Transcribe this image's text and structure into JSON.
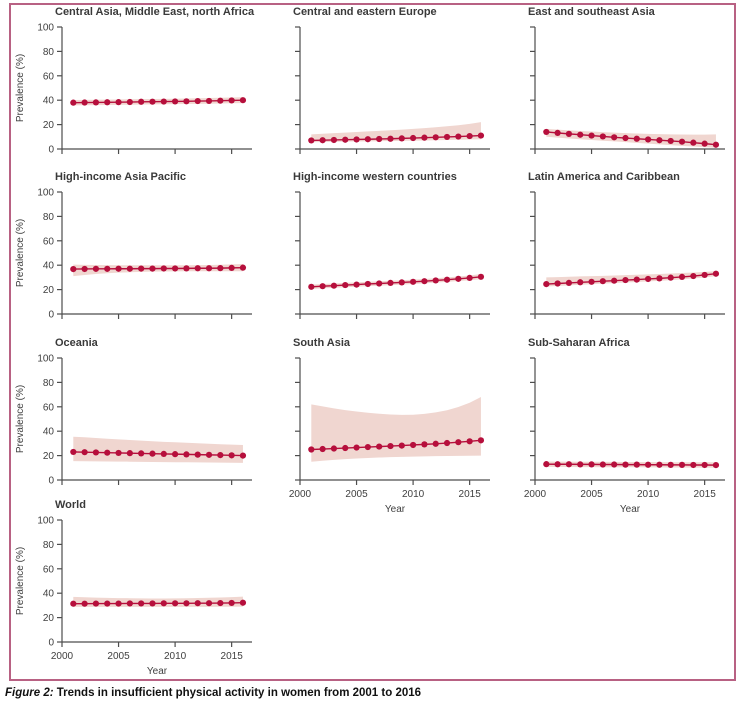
{
  "figure": {
    "caption_label": "Figure 2:",
    "caption_text": " Trends in insufficient physical activity in women from 2001 to 2016"
  },
  "colors": {
    "line": "#b60f3c",
    "band": "#f0d6d0",
    "axis": "#4d4d4d",
    "frame": "#b86183"
  },
  "chart_data": {
    "type": "line",
    "x_label": "Year",
    "y_label": "Prevalence (%)",
    "x": [
      2001,
      2002,
      2003,
      2004,
      2005,
      2006,
      2007,
      2008,
      2009,
      2010,
      2011,
      2012,
      2013,
      2014,
      2015,
      2016
    ],
    "y_ticks": [
      0,
      20,
      40,
      60,
      80,
      100
    ],
    "x_ticks": [
      2000,
      2005,
      2010,
      2015
    ],
    "y_range": [
      0,
      100
    ],
    "x_axis_range": [
      2000,
      2016.8
    ],
    "band_meaning": "uncertainty interval",
    "panels": [
      {
        "title": "Central Asia, Middle East, north Africa",
        "y_labels_visible": true,
        "x_labels_visible": false,
        "values": [
          38,
          38.1,
          38.2,
          38.3,
          38.4,
          38.5,
          38.7,
          38.8,
          38.9,
          39,
          39.1,
          39.3,
          39.4,
          39.6,
          39.8,
          40
        ],
        "lower": [
          35.8,
          35.9,
          36,
          36.1,
          36.2,
          36.3,
          36.5,
          36.6,
          36.7,
          36.8,
          36.9,
          37,
          37.1,
          37.3,
          37.5,
          37.6
        ],
        "upper": [
          40.2,
          40.3,
          40.4,
          40.5,
          40.6,
          40.8,
          40.9,
          41,
          41.1,
          41.2,
          41.4,
          41.6,
          41.8,
          42,
          42.2,
          42.5
        ]
      },
      {
        "title": "Central and eastern Europe",
        "y_labels_visible": false,
        "x_labels_visible": false,
        "values": [
          7,
          7.2,
          7.4,
          7.6,
          7.8,
          8,
          8.2,
          8.4,
          8.7,
          9,
          9.3,
          9.6,
          9.9,
          10.2,
          10.6,
          11
        ],
        "lower": [
          5.5,
          5.6,
          5.8,
          6,
          6.1,
          6.3,
          6.4,
          6.6,
          6.7,
          6.9,
          7,
          7.2,
          7.4,
          7.6,
          7.8,
          8
        ],
        "upper": [
          12,
          12.5,
          13,
          13.4,
          13.9,
          14.4,
          14.9,
          15.4,
          15.9,
          16.5,
          17.1,
          17.8,
          18.6,
          19.5,
          20.6,
          22
        ]
      },
      {
        "title": "East and southeast Asia",
        "y_labels_visible": false,
        "x_labels_visible": false,
        "values": [
          14,
          13.2,
          12.4,
          11.7,
          11,
          10.3,
          9.6,
          9,
          8.4,
          7.8,
          7.2,
          6.6,
          6,
          5.2,
          4.4,
          3.5
        ],
        "lower": [
          10,
          9.3,
          8.6,
          8,
          7.4,
          6.8,
          6.2,
          5.6,
          5,
          4.4,
          3.8,
          3.2,
          2.6,
          2,
          1.5,
          1
        ],
        "upper": [
          16.5,
          15.9,
          15.3,
          14.8,
          14.3,
          13.8,
          13.4,
          13,
          12.7,
          12.4,
          12.2,
          12,
          11.9,
          11.8,
          11.8,
          12
        ]
      },
      {
        "title": "High-income Asia Pacific",
        "y_labels_visible": true,
        "x_labels_visible": false,
        "values": [
          36.8,
          36.9,
          37,
          37,
          37.1,
          37.1,
          37.2,
          37.2,
          37.3,
          37.3,
          37.4,
          37.5,
          37.5,
          37.6,
          37.8,
          38
        ],
        "lower": [
          31,
          32,
          32.8,
          33.4,
          33.9,
          34.2,
          34.5,
          34.7,
          34.8,
          34.9,
          35,
          35,
          35,
          35,
          35,
          35
        ],
        "upper": [
          40.5,
          40.3,
          40.2,
          40.1,
          40,
          40,
          40,
          40,
          40,
          40,
          40,
          40.1,
          40.2,
          40.4,
          40.7,
          41
        ]
      },
      {
        "title": "High-income western countries",
        "y_labels_visible": false,
        "x_labels_visible": false,
        "values": [
          22.3,
          22.8,
          23.2,
          23.7,
          24.1,
          24.6,
          25,
          25.5,
          25.9,
          26.4,
          26.9,
          27.5,
          28.1,
          28.8,
          29.6,
          30.5
        ],
        "lower": [
          20.5,
          21,
          21.4,
          21.9,
          22.3,
          22.8,
          23.2,
          23.7,
          24.1,
          24.6,
          25.1,
          25.7,
          26.3,
          27,
          27.7,
          28.5
        ],
        "upper": [
          24.1,
          24.6,
          25,
          25.5,
          25.9,
          26.4,
          26.8,
          27.3,
          27.7,
          28.2,
          28.7,
          29.3,
          30,
          30.7,
          31.6,
          32.8
        ]
      },
      {
        "title": "Latin America and Caribbean",
        "y_labels_visible": false,
        "x_labels_visible": false,
        "values": [
          24.5,
          25,
          25.5,
          26,
          26.4,
          26.9,
          27.3,
          27.8,
          28.2,
          28.7,
          29.2,
          29.8,
          30.4,
          31.1,
          32,
          33
        ],
        "lower": [
          22.5,
          23,
          23.5,
          24,
          24.4,
          24.9,
          25.3,
          25.8,
          26.2,
          26.7,
          27.2,
          27.8,
          28.4,
          29.1,
          30,
          31
        ],
        "upper": [
          30,
          30.2,
          30.5,
          30.8,
          31,
          31.3,
          31.6,
          31.9,
          32.2,
          32.5,
          32.8,
          33.2,
          33.6,
          34,
          34.5,
          35
        ]
      },
      {
        "title": "Oceania",
        "y_labels_visible": true,
        "x_labels_visible": false,
        "values": [
          23,
          22.8,
          22.6,
          22.4,
          22.2,
          22,
          21.8,
          21.6,
          21.4,
          21.2,
          21,
          20.8,
          20.6,
          20.4,
          20.2,
          20
        ],
        "lower": [
          15.5,
          15.4,
          15.3,
          15.2,
          15.1,
          15,
          14.9,
          14.8,
          14.7,
          14.6,
          14.5,
          14.4,
          14.3,
          14.2,
          14.1,
          14
        ],
        "upper": [
          35.5,
          35,
          34.4,
          33.8,
          33.3,
          32.8,
          32.3,
          31.8,
          31.3,
          30.9,
          30.5,
          30.1,
          29.7,
          29.3,
          29,
          28.7
        ]
      },
      {
        "title": "South Asia",
        "y_labels_visible": false,
        "x_labels_visible": true,
        "values": [
          25,
          25.4,
          25.8,
          26.2,
          26.6,
          27,
          27.4,
          27.8,
          28.2,
          28.7,
          29.2,
          29.7,
          30.3,
          31,
          31.7,
          32.5
        ],
        "lower": [
          15,
          15.8,
          16.5,
          17.1,
          17.6,
          18,
          18.4,
          18.7,
          19,
          19.2,
          19.4,
          19.6,
          19.7,
          19.8,
          19.9,
          20
        ],
        "upper": [
          62,
          60.3,
          58.7,
          57.3,
          56.1,
          55.1,
          54.3,
          53.7,
          53.4,
          53.5,
          54.2,
          55.4,
          57.2,
          59.8,
          63.3,
          68
        ]
      },
      {
        "title": "Sub-Saharan Africa",
        "y_labels_visible": false,
        "x_labels_visible": true,
        "values": [
          13,
          12.9,
          12.9,
          12.8,
          12.8,
          12.7,
          12.7,
          12.6,
          12.6,
          12.5,
          12.5,
          12.4,
          12.4,
          12.3,
          12.3,
          12.2
        ],
        "lower": [
          10.8,
          10.7,
          10.7,
          10.6,
          10.6,
          10.5,
          10.5,
          10.4,
          10.4,
          10.3,
          10.3,
          10.2,
          10.2,
          10.1,
          10.1,
          10
        ],
        "upper": [
          15.2,
          15.1,
          15.1,
          15,
          15,
          14.9,
          14.9,
          14.8,
          14.8,
          14.7,
          14.7,
          14.6,
          14.6,
          14.5,
          14.5,
          14.5
        ]
      },
      {
        "title": "World",
        "y_labels_visible": true,
        "x_labels_visible": true,
        "values": [
          31.4,
          31.4,
          31.5,
          31.5,
          31.5,
          31.6,
          31.6,
          31.6,
          31.7,
          31.7,
          31.7,
          31.8,
          31.8,
          31.9,
          32,
          32.2
        ],
        "lower": [
          28.8,
          28.8,
          28.8,
          28.8,
          28.8,
          28.8,
          28.8,
          28.8,
          28.8,
          28.8,
          28.8,
          28.8,
          28.8,
          28.9,
          28.9,
          29
        ],
        "upper": [
          37,
          36.7,
          36.4,
          36.2,
          36,
          35.9,
          35.8,
          35.7,
          35.7,
          35.8,
          35.9,
          36.1,
          36.3,
          36.5,
          36.8,
          37.2
        ]
      }
    ]
  }
}
